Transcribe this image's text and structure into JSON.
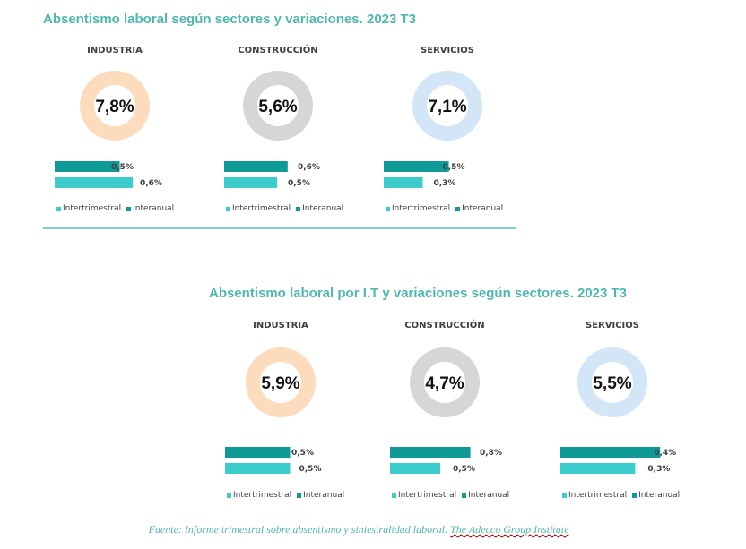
{
  "colors": {
    "title": "#4fb7b0",
    "interanual": "#0f9a98",
    "intertrimestral": "#3ccccc",
    "divider": "#7dcfcb",
    "footer": "#4fb7b0",
    "donut_industria": "#fcdcbd",
    "donut_construccion": "#d6d6d6",
    "donut_servicios": "#d2e6f7"
  },
  "footer": {
    "prefix": "Fuente: Informe trimestral sobre absentismo y siniestralidad laboral. ",
    "underlined": "The Adecco Group Institute"
  },
  "chart_data": [
    {
      "type": "donut-with-bars",
      "title": "Absentismo laboral según sectores y variaciones. 2023 T3",
      "legend": [
        "Intertrimestral",
        "Interanual"
      ],
      "sectors": [
        {
          "name": "INDUSTRIA",
          "rate": 7.8,
          "rate_label": "7,8%",
          "donut_color_key": "donut_industria",
          "interanual": 0.5,
          "interanual_label": "0,5%",
          "intertrimestral": 0.6,
          "intertrimestral_label": "0,6%"
        },
        {
          "name": "CONSTRUCCIÓN",
          "rate": 5.6,
          "rate_label": "5,6%",
          "donut_color_key": "donut_construccion",
          "interanual": 0.6,
          "interanual_label": "0,6%",
          "intertrimestral": 0.5,
          "intertrimestral_label": "0,5%"
        },
        {
          "name": "SERVICIOS",
          "rate": 7.1,
          "rate_label": "7,1%",
          "donut_color_key": "donut_servicios",
          "interanual": 0.5,
          "interanual_label": "0,5%",
          "intertrimestral": 0.3,
          "intertrimestral_label": "0,3%"
        }
      ]
    },
    {
      "type": "donut-with-bars",
      "title": "Absentismo laboral por I.T y variaciones según sectores. 2023 T3",
      "legend": [
        "Intertrimestral",
        "Interanual"
      ],
      "sectors": [
        {
          "name": "INDUSTRIA",
          "rate": 5.9,
          "rate_label": "5,9%",
          "donut_color_key": "donut_industria",
          "interanual": 0.5,
          "interanual_label": "0,5%",
          "intertrimestral": 0.5,
          "intertrimestral_label": "0,5%"
        },
        {
          "name": "CONSTRUCCIÓN",
          "rate": 4.7,
          "rate_label": "4,7%",
          "donut_color_key": "donut_construccion",
          "interanual": 0.8,
          "interanual_label": "0,8%",
          "intertrimestral": 0.5,
          "intertrimestral_label": "0,5%"
        },
        {
          "name": "SERVICIOS",
          "rate": 5.5,
          "rate_label": "5,5%",
          "donut_color_key": "donut_servicios",
          "interanual": 0.4,
          "interanual_label": "0,4%",
          "intertrimestral": 0.3,
          "intertrimestral_label": "0,3%"
        }
      ]
    }
  ]
}
